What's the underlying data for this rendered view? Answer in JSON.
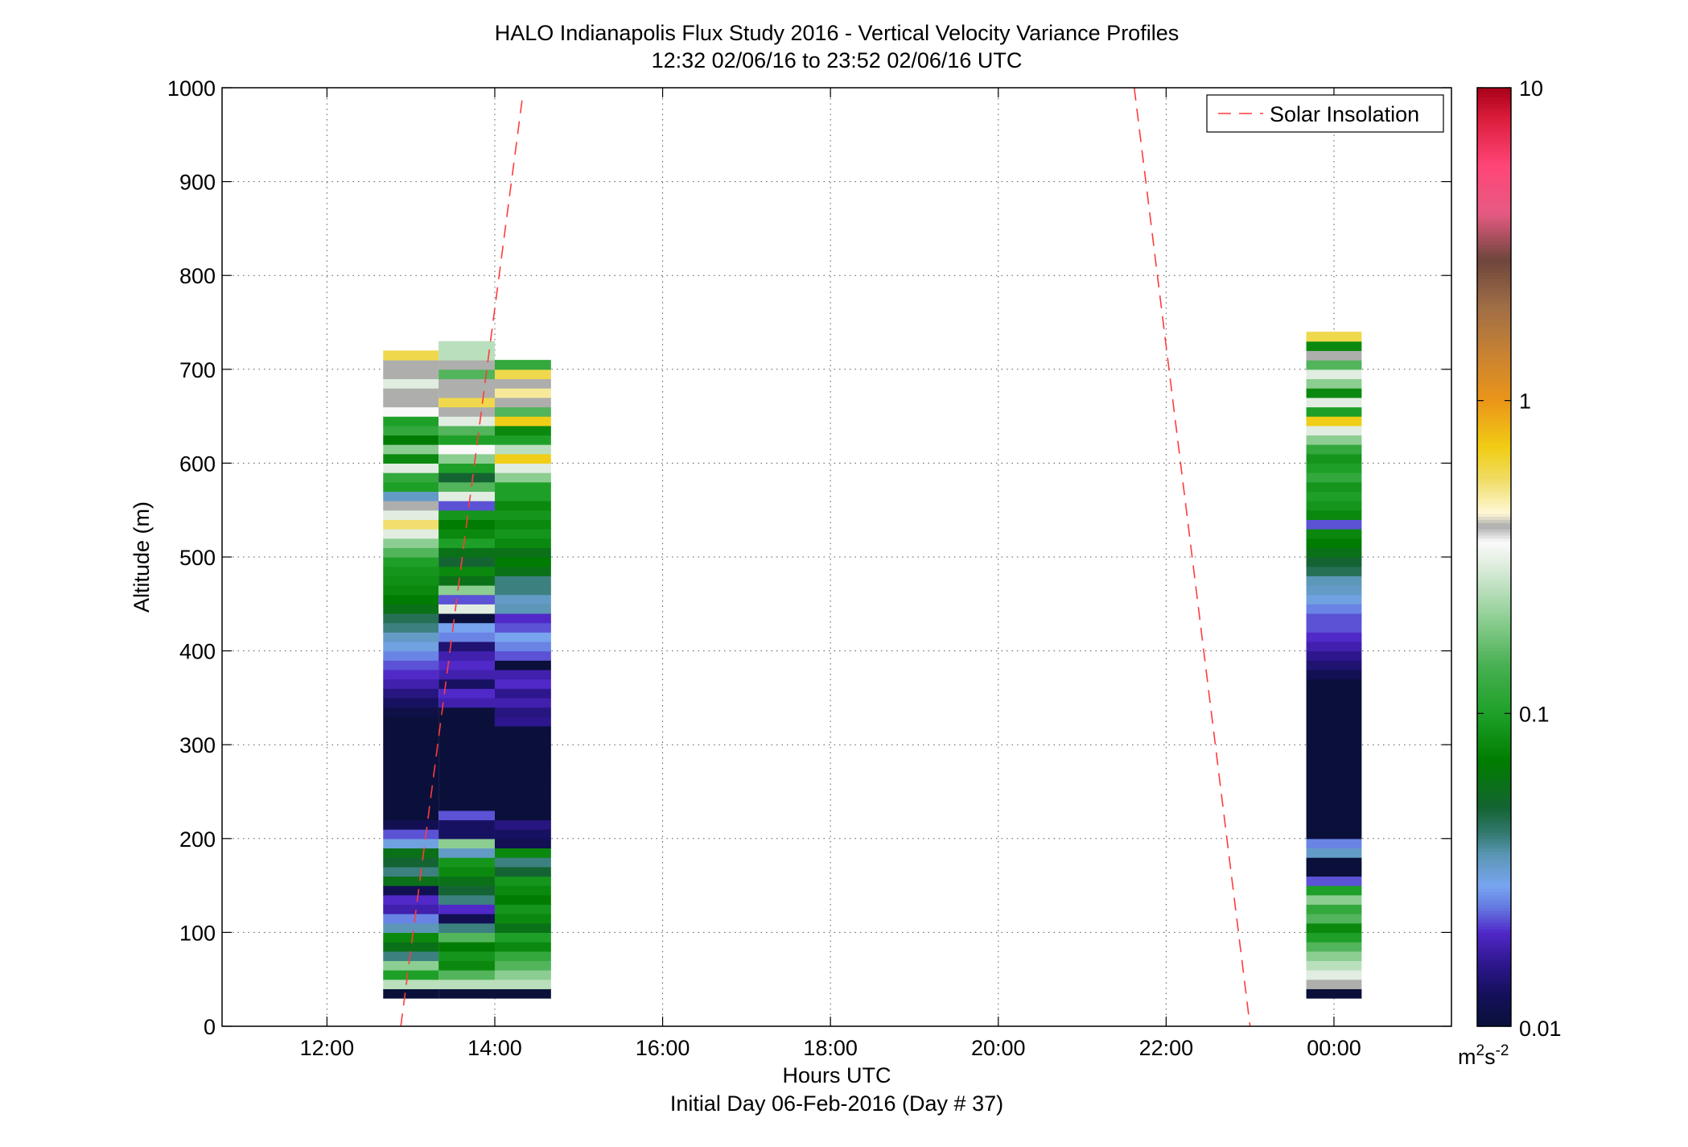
{
  "chart_data": {
    "type": "heatmap",
    "title": "HALO Indianapolis Flux Study 2016 - Vertical Velocity Variance Profiles",
    "subtitle": "12:32 02/06/16 to 23:52 02/06/16  UTC",
    "xlabel": "Hours UTC",
    "xlabel2": "Initial Day 06-Feb-2016 (Day # 37)",
    "ylabel": "Altitude (m)",
    "xlim": [
      10.75,
      25.4
    ],
    "ylim": [
      0,
      1000
    ],
    "x_ticks": [
      {
        "value": 12,
        "label": "12:00"
      },
      {
        "value": 14,
        "label": "14:00"
      },
      {
        "value": 16,
        "label": "16:00"
      },
      {
        "value": 18,
        "label": "18:00"
      },
      {
        "value": 20,
        "label": "20:00"
      },
      {
        "value": 22,
        "label": "22:00"
      },
      {
        "value": 24,
        "label": "00:00"
      }
    ],
    "y_ticks": [
      {
        "value": 0,
        "label": "0"
      },
      {
        "value": 100,
        "label": "100"
      },
      {
        "value": 200,
        "label": "200"
      },
      {
        "value": 300,
        "label": "300"
      },
      {
        "value": 400,
        "label": "400"
      },
      {
        "value": 500,
        "label": "500"
      },
      {
        "value": 600,
        "label": "600"
      },
      {
        "value": 700,
        "label": "700"
      },
      {
        "value": 800,
        "label": "800"
      },
      {
        "value": 900,
        "label": "900"
      },
      {
        "value": 1000,
        "label": "1000"
      }
    ],
    "grid": true,
    "legend": {
      "position": "top-right",
      "entries": [
        {
          "name": "Solar Insolation",
          "style": "dashed",
          "color": "#ff3b3b"
        }
      ]
    },
    "colorbar": {
      "scale": "log",
      "range": [
        0.01,
        10
      ],
      "ticks": [
        {
          "value": 0.01,
          "label": "0.01"
        },
        {
          "value": 0.1,
          "label": "0.1"
        },
        {
          "value": 1,
          "label": "1"
        },
        {
          "value": 10,
          "label": "10"
        }
      ],
      "unit_base": "m",
      "unit_sup1": "2",
      "unit_mid": "s",
      "unit_sup2": "-2"
    },
    "gate_height_m": 10,
    "profiles": [
      {
        "x_start": 12.67,
        "x_end": 13.33,
        "segments": [
          [
            35,
            0.01
          ],
          [
            45,
            0.25
          ],
          [
            55,
            0.1
          ],
          [
            65,
            0.2
          ],
          [
            75,
            0.04
          ],
          [
            85,
            0.06
          ],
          [
            95,
            0.08
          ],
          [
            105,
            0.035
          ],
          [
            115,
            0.025
          ],
          [
            125,
            0.018
          ],
          [
            135,
            0.02
          ],
          [
            145,
            0.012
          ],
          [
            155,
            0.06
          ],
          [
            165,
            0.04
          ],
          [
            175,
            0.05
          ],
          [
            185,
            0.06
          ],
          [
            195,
            0.03
          ],
          [
            205,
            0.022
          ],
          [
            215,
            0.012
          ],
          [
            225,
            0.01
          ],
          [
            235,
            0.01
          ],
          [
            245,
            0.01
          ],
          [
            255,
            0.01
          ],
          [
            265,
            0.01
          ],
          [
            275,
            0.01
          ],
          [
            285,
            0.01
          ],
          [
            295,
            0.01
          ],
          [
            305,
            0.01
          ],
          [
            315,
            0.01
          ],
          [
            325,
            0.01
          ],
          [
            335,
            0.011
          ],
          [
            345,
            0.013
          ],
          [
            355,
            0.015
          ],
          [
            365,
            0.018
          ],
          [
            375,
            0.02
          ],
          [
            385,
            0.022
          ],
          [
            395,
            0.025
          ],
          [
            405,
            0.03
          ],
          [
            415,
            0.033
          ],
          [
            425,
            0.04
          ],
          [
            435,
            0.045
          ],
          [
            445,
            0.06
          ],
          [
            455,
            0.07
          ],
          [
            465,
            0.08
          ],
          [
            475,
            0.085
          ],
          [
            485,
            0.09
          ],
          [
            495,
            0.1
          ],
          [
            505,
            0.15
          ],
          [
            515,
            0.2
          ],
          [
            525,
            0.3
          ],
          [
            535,
            0.55
          ],
          [
            545,
            0.3
          ],
          [
            555,
            0.4
          ],
          [
            565,
            0.033
          ],
          [
            575,
            0.1
          ],
          [
            585,
            0.12
          ],
          [
            595,
            0.3
          ],
          [
            605,
            0.08
          ],
          [
            615,
            0.2
          ],
          [
            625,
            0.07
          ],
          [
            635,
            0.12
          ],
          [
            645,
            0.1
          ],
          [
            655,
            0.35
          ],
          [
            665,
            0.4
          ],
          [
            675,
            0.4
          ],
          [
            685,
            0.3
          ],
          [
            695,
            0.4
          ],
          [
            705,
            0.4
          ],
          [
            715,
            0.6
          ]
        ]
      },
      {
        "x_start": 13.33,
        "x_end": 14.0,
        "segments": [
          [
            35,
            0.01
          ],
          [
            45,
            0.25
          ],
          [
            55,
            0.15
          ],
          [
            65,
            0.08
          ],
          [
            75,
            0.09
          ],
          [
            85,
            0.07
          ],
          [
            95,
            0.15
          ],
          [
            105,
            0.04
          ],
          [
            115,
            0.012
          ],
          [
            125,
            0.02
          ],
          [
            135,
            0.04
          ],
          [
            145,
            0.05
          ],
          [
            155,
            0.06
          ],
          [
            165,
            0.08
          ],
          [
            175,
            0.09
          ],
          [
            185,
            0.033
          ],
          [
            195,
            0.2
          ],
          [
            205,
            0.013
          ],
          [
            215,
            0.013
          ],
          [
            225,
            0.022
          ],
          [
            235,
            0.01
          ],
          [
            245,
            0.01
          ],
          [
            255,
            0.01
          ],
          [
            265,
            0.01
          ],
          [
            275,
            0.01
          ],
          [
            285,
            0.01
          ],
          [
            295,
            0.01
          ],
          [
            305,
            0.01
          ],
          [
            315,
            0.01
          ],
          [
            325,
            0.01
          ],
          [
            335,
            0.01
          ],
          [
            345,
            0.018
          ],
          [
            355,
            0.02
          ],
          [
            365,
            0.013
          ],
          [
            375,
            0.018
          ],
          [
            385,
            0.02
          ],
          [
            395,
            0.018
          ],
          [
            405,
            0.014
          ],
          [
            415,
            0.025
          ],
          [
            425,
            0.028
          ],
          [
            435,
            0.01
          ],
          [
            445,
            0.3
          ],
          [
            455,
            0.022
          ],
          [
            465,
            0.2
          ],
          [
            475,
            0.06
          ],
          [
            485,
            0.08
          ],
          [
            495,
            0.05
          ],
          [
            505,
            0.06
          ],
          [
            515,
            0.1
          ],
          [
            525,
            0.08
          ],
          [
            535,
            0.07
          ],
          [
            545,
            0.09
          ],
          [
            555,
            0.022
          ],
          [
            565,
            0.3
          ],
          [
            575,
            0.15
          ],
          [
            585,
            0.05
          ],
          [
            595,
            0.1
          ],
          [
            605,
            0.2
          ],
          [
            615,
            0.35
          ],
          [
            625,
            0.1
          ],
          [
            635,
            0.15
          ],
          [
            645,
            0.3
          ],
          [
            655,
            0.4
          ],
          [
            665,
            0.6
          ],
          [
            675,
            0.4
          ],
          [
            685,
            0.4
          ],
          [
            695,
            0.15
          ],
          [
            705,
            0.4
          ],
          [
            715,
            0.25
          ],
          [
            725,
            0.25
          ]
        ]
      },
      {
        "x_start": 14.0,
        "x_end": 14.67,
        "segments": [
          [
            35,
            0.01
          ],
          [
            45,
            0.25
          ],
          [
            55,
            0.2
          ],
          [
            65,
            0.15
          ],
          [
            75,
            0.12
          ],
          [
            85,
            0.08
          ],
          [
            95,
            0.1
          ],
          [
            105,
            0.06
          ],
          [
            115,
            0.08
          ],
          [
            125,
            0.09
          ],
          [
            135,
            0.07
          ],
          [
            145,
            0.08
          ],
          [
            155,
            0.09
          ],
          [
            165,
            0.05
          ],
          [
            175,
            0.04
          ],
          [
            185,
            0.08
          ],
          [
            195,
            0.012
          ],
          [
            205,
            0.013
          ],
          [
            215,
            0.015
          ],
          [
            225,
            0.01
          ],
          [
            235,
            0.01
          ],
          [
            245,
            0.01
          ],
          [
            255,
            0.01
          ],
          [
            265,
            0.01
          ],
          [
            275,
            0.01
          ],
          [
            285,
            0.01
          ],
          [
            295,
            0.01
          ],
          [
            305,
            0.01
          ],
          [
            315,
            0.01
          ],
          [
            325,
            0.016
          ],
          [
            335,
            0.015
          ],
          [
            345,
            0.018
          ],
          [
            355,
            0.016
          ],
          [
            365,
            0.02
          ],
          [
            375,
            0.018
          ],
          [
            385,
            0.01
          ],
          [
            395,
            0.022
          ],
          [
            405,
            0.025
          ],
          [
            415,
            0.028
          ],
          [
            425,
            0.022
          ],
          [
            435,
            0.02
          ],
          [
            445,
            0.035
          ],
          [
            455,
            0.033
          ],
          [
            465,
            0.04
          ],
          [
            475,
            0.04
          ],
          [
            485,
            0.06
          ],
          [
            495,
            0.07
          ],
          [
            505,
            0.06
          ],
          [
            515,
            0.08
          ],
          [
            525,
            0.09
          ],
          [
            535,
            0.08
          ],
          [
            545,
            0.09
          ],
          [
            555,
            0.08
          ],
          [
            565,
            0.1
          ],
          [
            575,
            0.1
          ],
          [
            585,
            0.2
          ],
          [
            595,
            0.3
          ],
          [
            605,
            0.7
          ],
          [
            615,
            0.25
          ],
          [
            625,
            0.1
          ],
          [
            635,
            0.08
          ],
          [
            645,
            0.7
          ],
          [
            655,
            0.15
          ],
          [
            665,
            0.4
          ],
          [
            675,
            0.5
          ],
          [
            685,
            0.4
          ],
          [
            695,
            0.6
          ],
          [
            705,
            0.12
          ]
        ]
      },
      {
        "x_start": 23.67,
        "x_end": 24.33,
        "segments": [
          [
            35,
            0.01
          ],
          [
            45,
            0.4
          ],
          [
            55,
            0.3
          ],
          [
            65,
            0.25
          ],
          [
            75,
            0.2
          ],
          [
            85,
            0.15
          ],
          [
            95,
            0.1
          ],
          [
            105,
            0.08
          ],
          [
            115,
            0.15
          ],
          [
            125,
            0.12
          ],
          [
            135,
            0.2
          ],
          [
            145,
            0.1
          ],
          [
            155,
            0.022
          ],
          [
            165,
            0.01
          ],
          [
            175,
            0.01
          ],
          [
            185,
            0.033
          ],
          [
            195,
            0.025
          ],
          [
            205,
            0.01
          ],
          [
            215,
            0.01
          ],
          [
            225,
            0.01
          ],
          [
            235,
            0.01
          ],
          [
            245,
            0.01
          ],
          [
            255,
            0.01
          ],
          [
            265,
            0.01
          ],
          [
            275,
            0.01
          ],
          [
            285,
            0.01
          ],
          [
            295,
            0.01
          ],
          [
            305,
            0.01
          ],
          [
            315,
            0.01
          ],
          [
            325,
            0.01
          ],
          [
            335,
            0.01
          ],
          [
            345,
            0.01
          ],
          [
            355,
            0.01
          ],
          [
            365,
            0.01
          ],
          [
            375,
            0.012
          ],
          [
            385,
            0.014
          ],
          [
            395,
            0.016
          ],
          [
            405,
            0.018
          ],
          [
            415,
            0.02
          ],
          [
            425,
            0.022
          ],
          [
            435,
            0.022
          ],
          [
            445,
            0.025
          ],
          [
            455,
            0.03
          ],
          [
            465,
            0.033
          ],
          [
            475,
            0.035
          ],
          [
            485,
            0.045
          ],
          [
            495,
            0.05
          ],
          [
            505,
            0.06
          ],
          [
            515,
            0.07
          ],
          [
            525,
            0.08
          ],
          [
            535,
            0.022
          ],
          [
            545,
            0.08
          ],
          [
            555,
            0.09
          ],
          [
            565,
            0.1
          ],
          [
            575,
            0.09
          ],
          [
            585,
            0.12
          ],
          [
            595,
            0.1
          ],
          [
            605,
            0.09
          ],
          [
            615,
            0.12
          ],
          [
            625,
            0.2
          ],
          [
            635,
            0.3
          ],
          [
            645,
            0.7
          ],
          [
            655,
            0.1
          ],
          [
            665,
            0.3
          ],
          [
            675,
            0.08
          ],
          [
            685,
            0.2
          ],
          [
            695,
            0.3
          ],
          [
            705,
            0.15
          ],
          [
            715,
            0.4
          ],
          [
            725,
            0.08
          ],
          [
            735,
            0.6
          ]
        ]
      }
    ],
    "solar_insolation_lines": [
      {
        "points": [
          [
            12.88,
            0
          ],
          [
            14.33,
            990
          ]
        ]
      },
      {
        "points": [
          [
            21.62,
            1000
          ],
          [
            23.0,
            0
          ]
        ]
      }
    ]
  }
}
